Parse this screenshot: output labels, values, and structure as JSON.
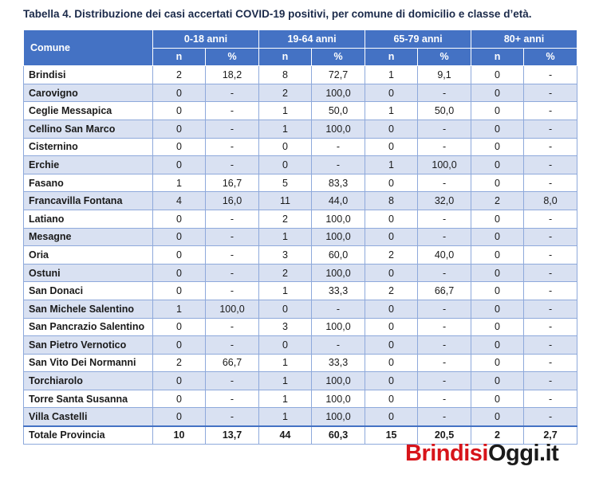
{
  "caption": "Tabella 4. Distribuzione dei casi accertati COVID-19 positivi, per comune di domicilio e classe d’età.",
  "header": {
    "comune": "Comune",
    "groups": [
      "0-18 anni",
      "19-64 anni",
      "65-79 anni",
      "80+ anni"
    ],
    "sub_n": "n",
    "sub_pct": "%"
  },
  "rows": [
    {
      "comune": "Brindisi",
      "c": [
        "2",
        "18,2",
        "8",
        "72,7",
        "1",
        "9,1",
        "0",
        "-"
      ]
    },
    {
      "comune": "Carovigno",
      "c": [
        "0",
        "-",
        "2",
        "100,0",
        "0",
        "-",
        "0",
        "-"
      ]
    },
    {
      "comune": "Ceglie Messapica",
      "c": [
        "0",
        "-",
        "1",
        "50,0",
        "1",
        "50,0",
        "0",
        "-"
      ]
    },
    {
      "comune": "Cellino San Marco",
      "c": [
        "0",
        "-",
        "1",
        "100,0",
        "0",
        "-",
        "0",
        "-"
      ]
    },
    {
      "comune": "Cisternino",
      "c": [
        "0",
        "-",
        "0",
        "-",
        "0",
        "-",
        "0",
        "-"
      ]
    },
    {
      "comune": "Erchie",
      "c": [
        "0",
        "-",
        "0",
        "-",
        "1",
        "100,0",
        "0",
        "-"
      ]
    },
    {
      "comune": "Fasano",
      "c": [
        "1",
        "16,7",
        "5",
        "83,3",
        "0",
        "-",
        "0",
        "-"
      ]
    },
    {
      "comune": "Francavilla Fontana",
      "c": [
        "4",
        "16,0",
        "11",
        "44,0",
        "8",
        "32,0",
        "2",
        "8,0"
      ]
    },
    {
      "comune": "Latiano",
      "c": [
        "0",
        "-",
        "2",
        "100,0",
        "0",
        "-",
        "0",
        "-"
      ]
    },
    {
      "comune": "Mesagne",
      "c": [
        "0",
        "-",
        "1",
        "100,0",
        "0",
        "-",
        "0",
        "-"
      ]
    },
    {
      "comune": "Oria",
      "c": [
        "0",
        "-",
        "3",
        "60,0",
        "2",
        "40,0",
        "0",
        "-"
      ]
    },
    {
      "comune": "Ostuni",
      "c": [
        "0",
        "-",
        "2",
        "100,0",
        "0",
        "-",
        "0",
        "-"
      ]
    },
    {
      "comune": "San Donaci",
      "c": [
        "0",
        "-",
        "1",
        "33,3",
        "2",
        "66,7",
        "0",
        "-"
      ]
    },
    {
      "comune": "San Michele Salentino",
      "c": [
        "1",
        "100,0",
        "0",
        "-",
        "0",
        "-",
        "0",
        "-"
      ]
    },
    {
      "comune": "San Pancrazio Salentino",
      "c": [
        "0",
        "-",
        "3",
        "100,0",
        "0",
        "-",
        "0",
        "-"
      ]
    },
    {
      "comune": "San Pietro Vernotico",
      "c": [
        "0",
        "-",
        "0",
        "-",
        "0",
        "-",
        "0",
        "-"
      ]
    },
    {
      "comune": "San Vito Dei Normanni",
      "c": [
        "2",
        "66,7",
        "1",
        "33,3",
        "0",
        "-",
        "0",
        "-"
      ]
    },
    {
      "comune": "Torchiarolo",
      "c": [
        "0",
        "-",
        "1",
        "100,0",
        "0",
        "-",
        "0",
        "-"
      ]
    },
    {
      "comune": "Torre Santa Susanna",
      "c": [
        "0",
        "-",
        "1",
        "100,0",
        "0",
        "-",
        "0",
        "-"
      ]
    },
    {
      "comune": "Villa Castelli",
      "c": [
        "0",
        "-",
        "1",
        "100,0",
        "0",
        "-",
        "0",
        "-"
      ]
    }
  ],
  "total": {
    "comune": "Totale Provincia",
    "c": [
      "10",
      "13,7",
      "44",
      "60,3",
      "15",
      "20,5",
      "2",
      "2,7"
    ]
  },
  "watermark": {
    "part1": "Brindisi",
    "part2": "Oggi.it"
  }
}
